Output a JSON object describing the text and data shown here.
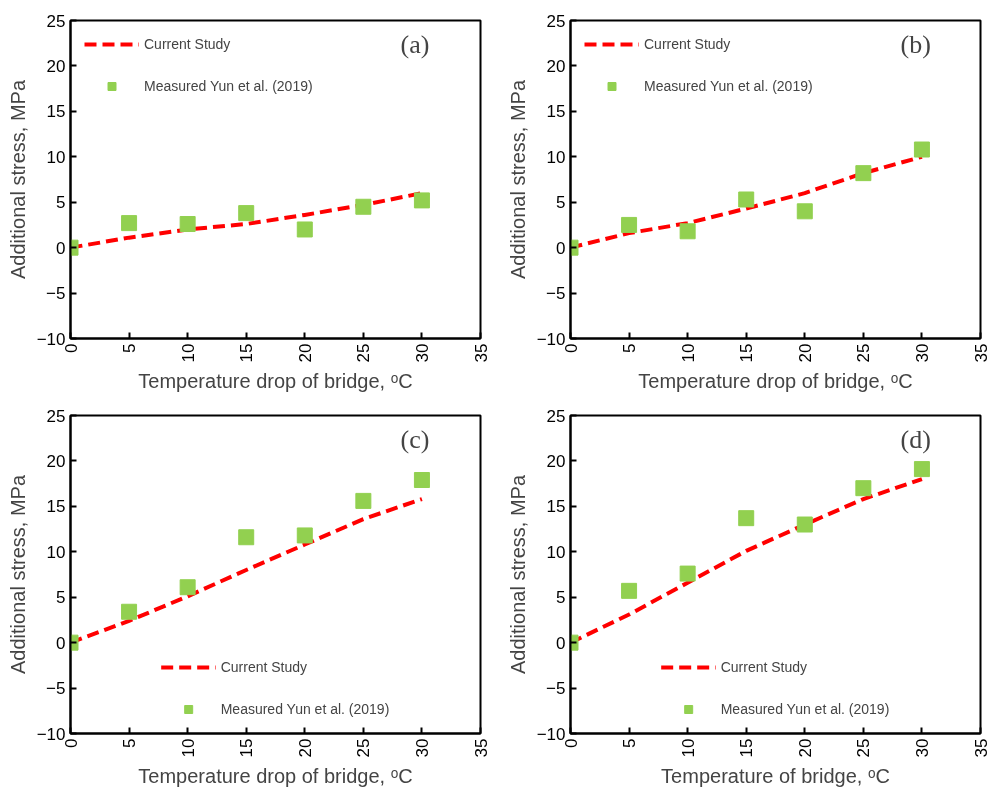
{
  "chart_data": [
    {
      "type": "line",
      "xlabel": "Temperature drop of bridge, ᵒC",
      "ylabel": "Additional stress, MPa",
      "annotations": [
        "(a)"
      ],
      "x": [
        0,
        5,
        10,
        15,
        20,
        25,
        30
      ],
      "xlim": [
        0,
        35
      ],
      "xticks": [
        0,
        5,
        10,
        15,
        20,
        25,
        30,
        35
      ],
      "ylim": [
        -10,
        25
      ],
      "yticks": [
        -10,
        -5,
        0,
        5,
        10,
        15,
        20,
        25
      ],
      "legend": "top left",
      "series": [
        {
          "name": "Current Study",
          "line_style": "dashed",
          "color": "#ff0000",
          "values": [
            0,
            1.1,
            2.0,
            2.6,
            3.6,
            4.7,
            6.0
          ]
        },
        {
          "name": "Measured Yun et al. (2019)",
          "type": "scatter",
          "marker": "square",
          "color": "#92d050",
          "values": [
            0,
            2.7,
            2.6,
            3.8,
            2.0,
            4.5,
            5.2
          ]
        }
      ]
    },
    {
      "type": "line",
      "xlabel": "Temperature drop of bridge, ᵒC",
      "ylabel": "Additional stress, MPa",
      "annotations": [
        "(b)"
      ],
      "x": [
        0,
        5,
        10,
        15,
        20,
        25,
        30
      ],
      "xlim": [
        0,
        35
      ],
      "xticks": [
        0,
        5,
        10,
        15,
        20,
        25,
        30,
        35
      ],
      "ylim": [
        -10,
        25
      ],
      "yticks": [
        -10,
        -5,
        0,
        5,
        10,
        15,
        20,
        25
      ],
      "legend": "top left",
      "series": [
        {
          "name": "Current Study",
          "line_style": "dashed",
          "color": "#ff0000",
          "values": [
            0,
            1.6,
            2.7,
            4.3,
            6.0,
            8.2,
            10.0
          ]
        },
        {
          "name": "Measured Yun et al. (2019)",
          "type": "scatter",
          "marker": "square",
          "color": "#92d050",
          "values": [
            0,
            2.5,
            1.8,
            5.3,
            4.0,
            8.2,
            10.8
          ]
        }
      ]
    },
    {
      "type": "line",
      "xlabel": "Temperature drop of bridge, ᵒC",
      "ylabel": "Additional stress, MPa",
      "annotations": [
        "(c)"
      ],
      "x": [
        0,
        5,
        10,
        15,
        20,
        25,
        30
      ],
      "xlim": [
        0,
        35
      ],
      "xticks": [
        0,
        5,
        10,
        15,
        20,
        25,
        30,
        35
      ],
      "ylim": [
        -10,
        25
      ],
      "yticks": [
        -10,
        -5,
        0,
        5,
        10,
        15,
        20,
        25
      ],
      "legend": "bottom",
      "series": [
        {
          "name": "Current Study",
          "line_style": "dashed",
          "color": "#ff0000",
          "values": [
            0,
            2.4,
            5.1,
            8.0,
            10.8,
            13.6,
            15.8
          ]
        },
        {
          "name": "Measured Yun et al. (2019)",
          "type": "scatter",
          "marker": "square",
          "color": "#92d050",
          "values": [
            0,
            3.4,
            6.1,
            11.6,
            11.8,
            15.6,
            17.9
          ]
        }
      ]
    },
    {
      "type": "line",
      "xlabel": "Temperature of bridge, ᵒC",
      "ylabel": "Additional stress, MPa",
      "annotations": [
        "(d)"
      ],
      "x": [
        0,
        5,
        10,
        15,
        20,
        25,
        30
      ],
      "xlim": [
        0,
        35
      ],
      "xticks": [
        0,
        5,
        10,
        15,
        20,
        25,
        30,
        35
      ],
      "ylim": [
        -10,
        25
      ],
      "yticks": [
        -10,
        -5,
        0,
        5,
        10,
        15,
        20,
        25
      ],
      "legend": "bottom",
      "series": [
        {
          "name": "Current Study",
          "line_style": "dashed",
          "color": "#ff0000",
          "values": [
            0,
            3.1,
            6.6,
            10.1,
            13.0,
            15.8,
            18.0
          ]
        },
        {
          "name": "Measured Yun et al. (2019)",
          "type": "scatter",
          "marker": "square",
          "color": "#92d050",
          "values": [
            0,
            5.7,
            7.6,
            13.7,
            13.0,
            17.0,
            19.1
          ]
        }
      ]
    }
  ]
}
